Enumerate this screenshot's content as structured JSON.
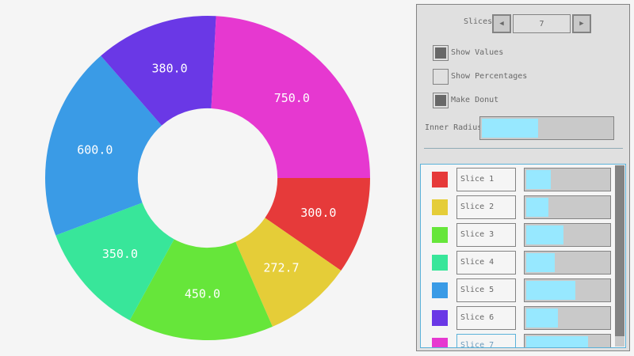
{
  "chart_data": {
    "type": "pie",
    "donut": true,
    "inner_radius_fraction": 0.43,
    "show_values": true,
    "show_percentages": false,
    "categories": [
      "Slice 1",
      "Slice 2",
      "Slice 3",
      "Slice 4",
      "Slice 5",
      "Slice 6",
      "Slice 7"
    ],
    "values": [
      300.0,
      272.7,
      450.0,
      350.0,
      600.0,
      380.0,
      750.0
    ],
    "labels": [
      "300.0",
      "272.7",
      "450.0",
      "350.0",
      "600.0",
      "380.0",
      "750.0"
    ],
    "colors": [
      "#e63a3a",
      "#e5cd38",
      "#66e63a",
      "#38e69a",
      "#3a9be6",
      "#6a38e6",
      "#e638d0"
    ]
  },
  "controls": {
    "slices_label": "Slices",
    "slices_value": "7",
    "show_values": {
      "label": "Show Values",
      "checked": true
    },
    "show_percentages": {
      "label": "Show Percentages",
      "checked": false
    },
    "make_donut": {
      "label": "Make Donut",
      "checked": true
    },
    "inner_radius": {
      "label": "Inner Radius",
      "value": 0.43
    }
  },
  "list": {
    "slider_max": 1000,
    "items": [
      {
        "name": "Slice 1",
        "value": 300
      },
      {
        "name": "Slice 2",
        "value": 272.7
      },
      {
        "name": "Slice 3",
        "value": 450
      },
      {
        "name": "Slice 4",
        "value": 350
      },
      {
        "name": "Slice 5",
        "value": 600
      },
      {
        "name": "Slice 6",
        "value": 380
      },
      {
        "name": "Slice 7",
        "value": 750
      }
    ],
    "scroll_fraction": 0.94
  }
}
